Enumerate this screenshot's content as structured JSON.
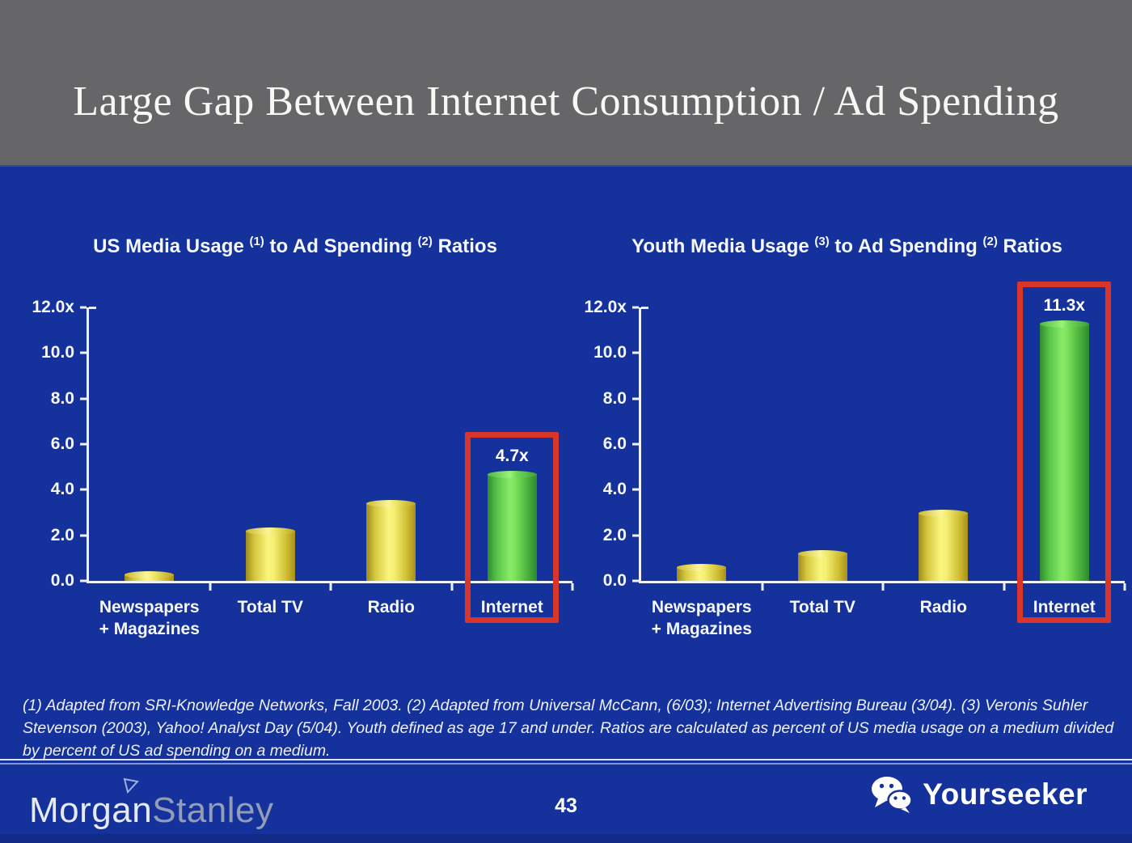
{
  "slide": {
    "title": "Large Gap Between Internet Consumption / Ad Spending",
    "page_number": "43",
    "footnote": "(1) Adapted from SRI-Knowledge Networks, Fall 2003.  (2) Adapted from Universal McCann, (6/03); Internet Advertising Bureau (3/04). (3) Veronis Suhler Stevenson (2003), Yahoo! Analyst Day (5/04).  Youth defined as age 17 and under.  Ratios are calculated as percent of US media usage on a medium divided by percent of US ad spending on a medium.",
    "brand": {
      "part1": "Morgan",
      "part2": "Stanley"
    },
    "watermark": {
      "label": "Yourseeker",
      "icon": "wechat-icon"
    }
  },
  "colors": {
    "header_gray": "#666668",
    "background_blue": "#14319c",
    "bar_yellow": "#f0e95c",
    "bar_green": "#63d34d",
    "highlight_red": "#d8352b",
    "axis_white": "#eef2fe"
  },
  "chart_data": [
    {
      "type": "bar",
      "title": "US Media Usage (1) to Ad Spending (2) Ratios",
      "title_segments": [
        {
          "text": "US Media Usage "
        },
        {
          "sup": "(1)"
        },
        {
          "text": " to Ad Spending "
        },
        {
          "sup": "(2)"
        },
        {
          "text": " Ratios"
        }
      ],
      "categories": [
        "Newspapers + Magazines",
        "Total TV",
        "Radio",
        "Internet"
      ],
      "category_label_lines": [
        [
          "Newspapers",
          "+ Magazines"
        ],
        [
          "Total TV"
        ],
        [
          "Radio"
        ],
        [
          "Internet"
        ]
      ],
      "values": [
        0.3,
        2.2,
        3.4,
        4.7
      ],
      "bar_colors": [
        "yellow",
        "yellow",
        "yellow",
        "green"
      ],
      "value_labels": {
        "3": "4.7x"
      },
      "highlighted_index": 3,
      "xlabel": "",
      "ylabel": "",
      "ylim": [
        0,
        12
      ],
      "ytick_labels": [
        "12.0x",
        "10.0",
        "8.0",
        "6.0",
        "4.0",
        "2.0",
        "0.0"
      ],
      "grid": false,
      "legend": "none"
    },
    {
      "type": "bar",
      "title": "Youth Media Usage (3) to Ad Spending (2) Ratios",
      "title_segments": [
        {
          "text": "Youth Media Usage "
        },
        {
          "sup": "(3)"
        },
        {
          "text": " to Ad Spending "
        },
        {
          "sup": "(2)"
        },
        {
          "text": " Ratios"
        }
      ],
      "categories": [
        "Newspapers + Magazines",
        "Total TV",
        "Radio",
        "Internet"
      ],
      "category_label_lines": [
        [
          "Newspapers",
          "+ Magazines"
        ],
        [
          "Total TV"
        ],
        [
          "Radio"
        ],
        [
          "Internet"
        ]
      ],
      "values": [
        0.6,
        1.2,
        3.0,
        11.3
      ],
      "bar_colors": [
        "yellow",
        "yellow",
        "yellow",
        "green"
      ],
      "value_labels": {
        "3": "11.3x"
      },
      "highlighted_index": 3,
      "xlabel": "",
      "ylabel": "",
      "ylim": [
        0,
        12
      ],
      "ytick_labels": [
        "12.0x",
        "10.0",
        "8.0",
        "6.0",
        "4.0",
        "2.0",
        "0.0"
      ],
      "grid": false,
      "legend": "none"
    }
  ]
}
